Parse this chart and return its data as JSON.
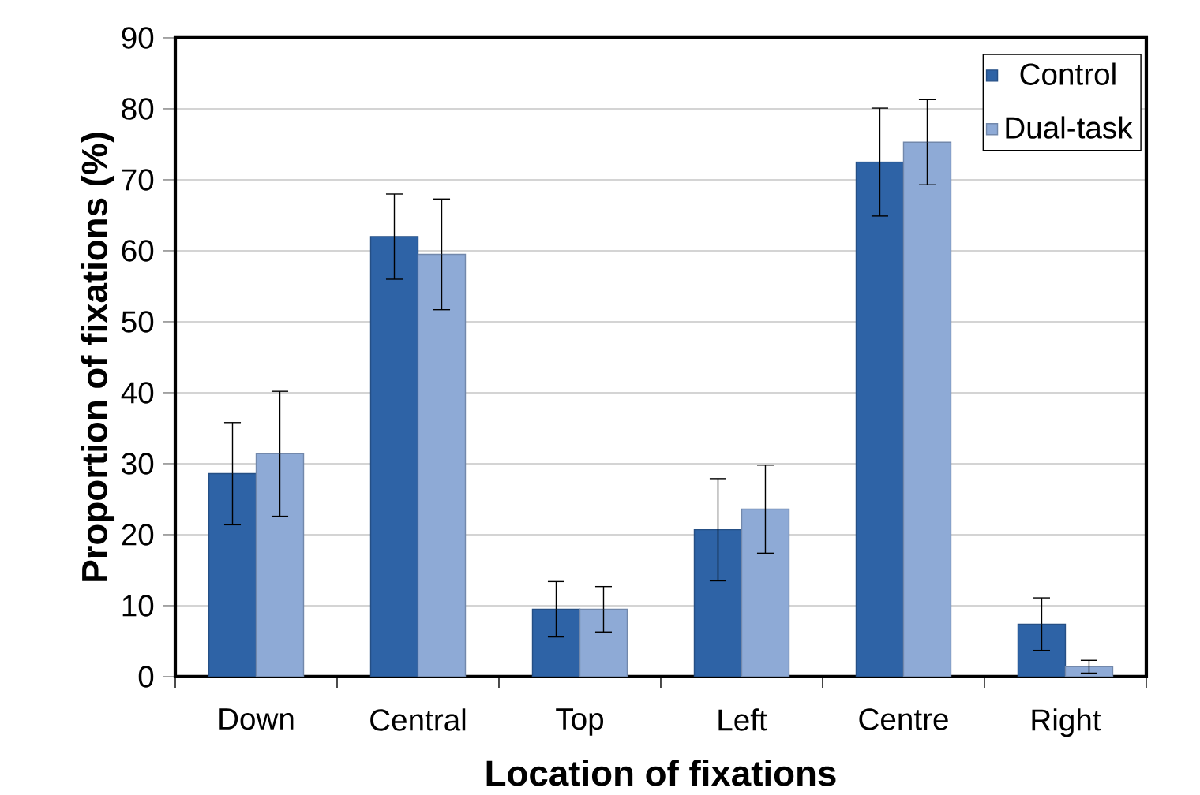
{
  "chart_data": {
    "type": "bar",
    "xlabel": "Location of fixations",
    "ylabel": "Proportion of fixations (%)",
    "categories": [
      "Down",
      "Central",
      "Top",
      "Left",
      "Centre",
      "Right"
    ],
    "series": [
      {
        "name": "Control",
        "color": "#2e63a6",
        "values": [
          28.6,
          62.0,
          9.5,
          20.7,
          72.5,
          7.4
        ],
        "errors": [
          7.2,
          6.0,
          3.9,
          7.2,
          7.6,
          3.7
        ]
      },
      {
        "name": "Dual-task",
        "color": "#8eaad6",
        "values": [
          31.4,
          59.5,
          9.5,
          23.6,
          75.3,
          1.4
        ],
        "errors": [
          8.8,
          7.8,
          3.2,
          6.2,
          6.0,
          0.9
        ]
      }
    ],
    "ylim": [
      0,
      90
    ],
    "yticks": [
      0,
      10,
      20,
      30,
      40,
      50,
      60,
      70,
      80,
      90
    ],
    "grid": "y",
    "legend": "top right"
  }
}
